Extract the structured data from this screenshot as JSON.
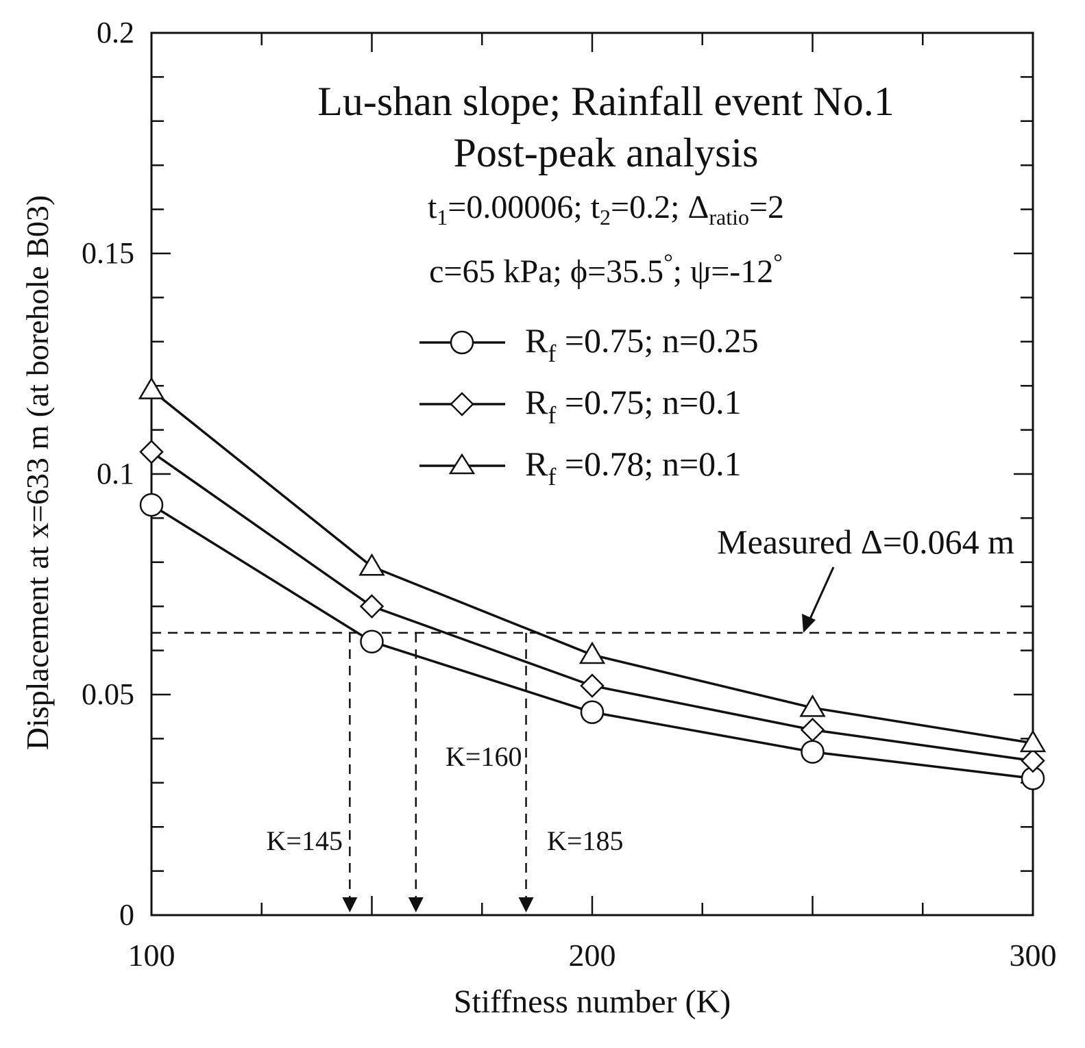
{
  "chart_data": {
    "type": "line",
    "xlabel": "Stiffness number (K)",
    "ylabel": "Displacement at x=633 m (at borehole B03)",
    "xlim": [
      100,
      300
    ],
    "ylim": [
      0,
      0.2
    ],
    "x_ticks": [
      "100",
      "200",
      "300"
    ],
    "y_ticks": [
      "0",
      "0.05",
      "0.1",
      "0.15",
      "0.2"
    ],
    "annotations": {
      "line1": "Lu-shan slope; Rainfall event No.1",
      "line2": "Post-peak analysis",
      "params": {
        "t1_pre": "t",
        "t1_sub": "1",
        "t1_val": "=0.00006; ",
        "t2_pre": "t",
        "t2_sub": "2",
        "t2_val": "=0.2; ",
        "d_pre": "Δ",
        "d_sub": "ratio",
        "d_val": "=2"
      },
      "strength": {
        "c": "c=65 kPa; ",
        "phi_sym": "ϕ",
        "phi_val": "=35.5",
        "phi_deg": "°",
        "sep": "; ",
        "psi_sym": "ψ",
        "psi_val": "=-12",
        "psi_deg": "°"
      },
      "measured_label": "Measured Δ=0.064 m",
      "measured_value": 0.064
    },
    "intersections": [
      {
        "k": 145,
        "label": "K=145"
      },
      {
        "k": 160,
        "label": "K=160"
      },
      {
        "k": 185,
        "label": "K=185"
      }
    ],
    "x": [
      100,
      150,
      200,
      250,
      300
    ],
    "series": [
      {
        "name": "R_f=0.75; n=0.25",
        "label_main": "R",
        "label_sub": "f",
        "label_rest": " =0.75; n=0.25",
        "marker": "circle",
        "values": [
          0.093,
          0.062,
          0.046,
          0.037,
          0.031
        ]
      },
      {
        "name": "R_f=0.75; n=0.1",
        "label_main": "R",
        "label_sub": "f",
        "label_rest": " =0.75; n=0.1",
        "marker": "diamond",
        "values": [
          0.105,
          0.07,
          0.052,
          0.042,
          0.035
        ]
      },
      {
        "name": "R_f=0.78; n=0.1",
        "label_main": "R",
        "label_sub": "f",
        "label_rest": " =0.78; n=0.1",
        "marker": "triangle",
        "values": [
          0.119,
          0.079,
          0.059,
          0.047,
          0.039
        ]
      }
    ]
  }
}
